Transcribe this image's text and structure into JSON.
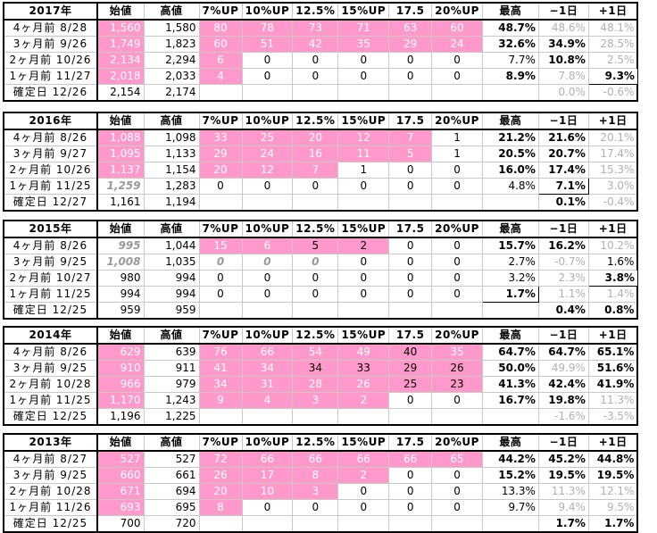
{
  "columns": [
    "始値",
    "高値",
    "7%UP",
    "10%UP",
    "12.5%",
    "15%UP",
    "17.5",
    "20%UP",
    "最高",
    "−1日",
    "+1日"
  ],
  "blocks": [
    {
      "year": "2017年",
      "rows": [
        {
          "label": "4ヶ月前  8/28",
          "open": "1,560",
          "high": "1,580",
          "counts": [
            "80",
            "78",
            "73",
            "71",
            "63",
            "60"
          ],
          "max": "48.7%",
          "m1": "48.6%",
          "p1": "48.1%"
        },
        {
          "label": "3ヶ月前  9/26",
          "open": "1,749",
          "high": "1,823",
          "counts": [
            "60",
            "51",
            "42",
            "35",
            "29",
            "24"
          ],
          "max": "32.6%",
          "m1": "34.9%",
          "p1": "28.5%"
        },
        {
          "label": "2ヶ月前  10/26",
          "open": "2,134",
          "high": "2,294",
          "counts": [
            "6",
            "0",
            "0",
            "0",
            "0",
            "0"
          ],
          "max": "7.7%",
          "m1": "10.8%",
          "p1": "2.5%"
        },
        {
          "label": "1ヶ月前  11/27",
          "open": "2,018",
          "high": "2,033",
          "counts": [
            "4",
            "0",
            "0",
            "0",
            "0",
            "0"
          ],
          "max": "8.9%",
          "m1": "7.8%",
          "p1": "9.3%"
        },
        {
          "label": "確定日  12/26",
          "open": "2,154",
          "high": "2,174",
          "counts": [
            "",
            "",
            "",
            "",
            "",
            ""
          ],
          "max": "",
          "m1": "0.0%",
          "p1": "-0.6%"
        }
      ]
    },
    {
      "year": "2016年",
      "rows": [
        {
          "label": "4ヶ月前  8/26",
          "open": "1,088",
          "high": "1,098",
          "counts": [
            "33",
            "25",
            "20",
            "12",
            "7",
            "1"
          ],
          "max": "21.2%",
          "m1": "21.6%",
          "p1": "20.1%"
        },
        {
          "label": "3ヶ月前  9/27",
          "open": "1,095",
          "high": "1,133",
          "counts": [
            "29",
            "24",
            "16",
            "11",
            "5",
            "1"
          ],
          "max": "20.5%",
          "m1": "20.7%",
          "p1": "17.4%"
        },
        {
          "label": "2ヶ月前  10/26",
          "open": "1,137",
          "high": "1,154",
          "counts": [
            "20",
            "12",
            "7",
            "1",
            "0",
            "0"
          ],
          "max": "16.0%",
          "m1": "17.4%",
          "p1": "15.3%"
        },
        {
          "label": "1ヶ月前  11/25",
          "open": "1,259",
          "high": "1,283",
          "counts": [
            "0",
            "0",
            "0",
            "0",
            "0",
            "0"
          ],
          "max": "4.8%",
          "m1": "7.1%",
          "p1": "3.0%"
        },
        {
          "label": "確定日  12/27",
          "open": "1,161",
          "high": "1,194",
          "counts": [
            "",
            "",
            "",
            "",
            "",
            ""
          ],
          "max": "",
          "m1": "0.1%",
          "p1": "-0.4%"
        }
      ]
    },
    {
      "year": "2015年",
      "rows": [
        {
          "label": "4ヶ月前  8/26",
          "open": "995",
          "high": "1,044",
          "counts": [
            "15",
            "6",
            "5",
            "2",
            "0",
            "0"
          ],
          "max": "15.7%",
          "m1": "16.2%",
          "p1": "10.2%"
        },
        {
          "label": "3ヶ月前  9/25",
          "open": "1,008",
          "high": "1,035",
          "counts": [
            "0",
            "0",
            "0",
            "0",
            "0",
            "0"
          ],
          "max": "2.7%",
          "m1": "-0.7%",
          "p1": "1.6%"
        },
        {
          "label": "2ヶ月前  10/27",
          "open": "980",
          "high": "994",
          "counts": [
            "0",
            "0",
            "0",
            "0",
            "0",
            "0"
          ],
          "max": "3.2%",
          "m1": "2.3%",
          "p1": "3.8%"
        },
        {
          "label": "1ヶ月前  11/25",
          "open": "994",
          "high": "994",
          "counts": [
            "0",
            "0",
            "0",
            "0",
            "0",
            "0"
          ],
          "max": "1.7%",
          "m1": "1.1%",
          "p1": "1.4%"
        },
        {
          "label": "確定日  12/25",
          "open": "959",
          "high": "959",
          "counts": [
            "",
            "",
            "",
            "",
            "",
            ""
          ],
          "max": "",
          "m1": "0.4%",
          "p1": "0.8%"
        }
      ]
    },
    {
      "year": "2014年",
      "rows": [
        {
          "label": "4ヶ月前  8/26",
          "open": "629",
          "high": "639",
          "counts": [
            "76",
            "66",
            "54",
            "49",
            "40",
            "35"
          ],
          "max": "64.7%",
          "m1": "64.7%",
          "p1": "65.1%"
        },
        {
          "label": "3ヶ月前  9/25",
          "open": "910",
          "high": "911",
          "counts": [
            "41",
            "34",
            "34",
            "33",
            "29",
            "26"
          ],
          "max": "50.0%",
          "m1": "49.9%",
          "p1": "51.6%"
        },
        {
          "label": "2ヶ月前  10/28",
          "open": "966",
          "high": "979",
          "counts": [
            "34",
            "31",
            "28",
            "26",
            "25",
            "23"
          ],
          "max": "41.3%",
          "m1": "42.4%",
          "p1": "41.9%"
        },
        {
          "label": "1ヶ月前  11/25",
          "open": "1,170",
          "high": "1,243",
          "counts": [
            "9",
            "4",
            "3",
            "2",
            "0",
            "0"
          ],
          "max": "16.7%",
          "m1": "19.8%",
          "p1": "11.3%"
        },
        {
          "label": "確定日  12/25",
          "open": "1,196",
          "high": "1,225",
          "counts": [
            "",
            "",
            "",
            "",
            "",
            ""
          ],
          "max": "",
          "m1": "-1.6%",
          "p1": "-3.5%"
        }
      ]
    },
    {
      "year": "2013年",
      "rows": [
        {
          "label": "4ヶ月前  8/27",
          "open": "527",
          "high": "527",
          "counts": [
            "72",
            "66",
            "66",
            "66",
            "66",
            "65"
          ],
          "max": "44.2%",
          "m1": "45.2%",
          "p1": "44.8%"
        },
        {
          "label": "3ヶ月前  9/25",
          "open": "660",
          "high": "661",
          "counts": [
            "26",
            "17",
            "8",
            "2",
            "0",
            "0"
          ],
          "max": "15.2%",
          "m1": "19.5%",
          "p1": "19.5%"
        },
        {
          "label": "2ヶ月前  10/28",
          "open": "671",
          "high": "694",
          "counts": [
            "20",
            "10",
            "3",
            "0",
            "0",
            "0"
          ],
          "max": "13.3%",
          "m1": "11.3%",
          "p1": "12.1%"
        },
        {
          "label": "1ヶ月前  11/26",
          "open": "693",
          "high": "695",
          "counts": [
            "8",
            "0",
            "0",
            "0",
            "0",
            "0"
          ],
          "max": "9.7%",
          "m1": "9.4%",
          "p1": "9.5%"
        },
        {
          "label": "確定日  12/25",
          "open": "700",
          "high": "720",
          "counts": [
            "",
            "",
            "",
            "",
            "",
            ""
          ],
          "max": "",
          "m1": "1.7%",
          "p1": "1.7%"
        }
      ]
    }
  ],
  "styling": {
    "pink": "#ff99cc",
    "gray_text": "#b0b0b0"
  }
}
